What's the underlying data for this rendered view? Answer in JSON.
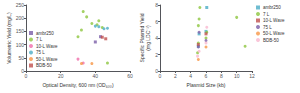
{
  "chart_data": [
    {
      "type": "scatter",
      "xlabel": "Optical Density, 600 nm (OD₆₀₀)",
      "ylabel": "Volumetric Yield (mg/L)",
      "xlim": [
        0,
        60
      ],
      "ylim": [
        0,
        250
      ],
      "xticks": [
        0,
        20,
        40,
        60
      ],
      "yticks": [
        0,
        50,
        100,
        150,
        200,
        250
      ],
      "grid": false,
      "legend": "lower left",
      "series": [
        {
          "name": "ambr250",
          "color": "#7b5ea7",
          "marker": "square",
          "x": [
            40,
            43
          ],
          "values": [
            110,
            130
          ]
        },
        {
          "name": "7 L",
          "color": "#8dc63f",
          "marker": "circle",
          "x": [
            30,
            32,
            33,
            35,
            38,
            41,
            42,
            44,
            47
          ],
          "values": [
            130,
            155,
            225,
            205,
            180,
            175,
            190,
            165,
            30
          ]
        },
        {
          "name": "10-L Wave",
          "color": "#f06eaa",
          "marker": "circle",
          "x": [
            30,
            33
          ],
          "values": [
            45,
            30
          ]
        },
        {
          "name": "75 L",
          "color": "#4bacc6",
          "marker": "circle",
          "x": [
            40,
            42,
            45,
            47
          ],
          "values": [
            170,
            168,
            160,
            162
          ]
        },
        {
          "name": "50-L Wave",
          "color": "#f79646",
          "marker": "circle",
          "x": [
            32,
            38
          ],
          "values": [
            28,
            28
          ]
        },
        {
          "name": "BDB-50",
          "color": "#c0504d",
          "marker": "square",
          "x": [
            44,
            46
          ],
          "values": [
            128,
            122
          ]
        }
      ]
    },
    {
      "type": "scatter",
      "xlabel": "Plasmid Size (kb)",
      "ylabel": "Specific Plasmid Yield\n(mg LDC⁻¹)",
      "xlim": [
        0,
        12
      ],
      "ylim": [
        0,
        8
      ],
      "xticks": [
        0,
        2,
        4,
        6,
        8,
        10,
        12
      ],
      "yticks": [
        0,
        2,
        4,
        6,
        8
      ],
      "grid": false,
      "legend": "upper right",
      "series": [
        {
          "name": "ambr250",
          "color": "#4bacc6",
          "marker": "square",
          "x": [
            5.0,
            5.1,
            6.0,
            6.1
          ],
          "values": [
            3.0,
            4.5,
            4.8,
            7.7
          ]
        },
        {
          "name": "7 L",
          "color": "#8dc63f",
          "marker": "circle",
          "x": [
            4.9,
            5.0,
            5.0,
            5.1,
            5.2,
            6.0,
            6.1,
            10.0,
            11.1
          ],
          "values": [
            2.2,
            3.4,
            5.5,
            6.3,
            7.7,
            4.0,
            4.7,
            6.5,
            3.0
          ]
        },
        {
          "name": "10-L Wave",
          "color": "#c0504d",
          "marker": "square",
          "x": [
            5.0,
            6.0
          ],
          "values": [
            3.2,
            4.5
          ]
        },
        {
          "name": "75 L",
          "color": "#7b5ea7",
          "marker": "circle",
          "x": [
            5.0,
            5.1,
            6.0
          ],
          "values": [
            2.9,
            4.7,
            3.7
          ]
        },
        {
          "name": "50-L Wave",
          "color": "#f79646",
          "marker": "circle",
          "x": [
            5.0,
            6.0
          ],
          "values": [
            1.4,
            2.9
          ]
        },
        {
          "name": "BDB-50",
          "color": "#f9b8d0",
          "marker": "circle",
          "x": [
            4.9,
            5.1,
            6.0,
            6.1
          ],
          "values": [
            1.8,
            2.4,
            3.4,
            5.3
          ]
        }
      ]
    }
  ]
}
